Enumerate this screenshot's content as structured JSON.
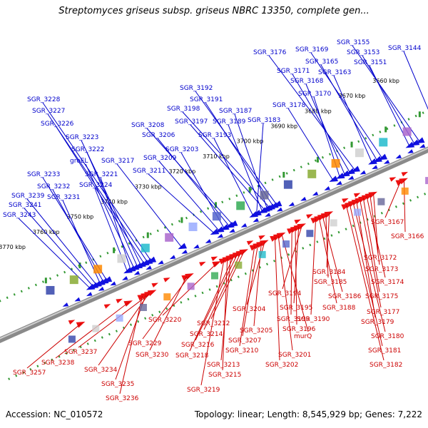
{
  "title": "Streptomyces griseus subsp. griseus NBRC 13350, complete gen...",
  "footer": {
    "accession": "Accession: NC_010572",
    "stats": "Topology: linear; Length: 8,545,929 bp; Genes: 7,222"
  },
  "colors": {
    "forward": "#1010e0",
    "reverse": "#ee1111",
    "forward_label": "#0000cc",
    "reverse_label": "#cc0000",
    "tick_dots": "#339933",
    "backbone": "#8a8a8a"
  },
  "kbp_ticks": [
    {
      "kbp": 3660,
      "label": "3660 kbp"
    },
    {
      "kbp": 3670,
      "label": "3670 kbp"
    },
    {
      "kbp": 3680,
      "label": "3680 kbp"
    },
    {
      "kbp": 3690,
      "label": "3690 kbp"
    },
    {
      "kbp": 3700,
      "label": "3700 kbp"
    },
    {
      "kbp": 3710,
      "label": "3710 kbp"
    },
    {
      "kbp": 3720,
      "label": "3720 kbp"
    },
    {
      "kbp": 3730,
      "label": "3730 kbp"
    },
    {
      "kbp": 3740,
      "label": "3740 kbp"
    },
    {
      "kbp": 3750,
      "label": "3750 kbp"
    },
    {
      "kbp": 3760,
      "label": "3760 kbp"
    },
    {
      "kbp": 3770,
      "label": "3770 kbp"
    }
  ],
  "forward_genes": [
    {
      "label": "SGR_3144",
      "kbp": 3657.5
    },
    {
      "label": "SGR_3155",
      "kbp": 3663.0
    },
    {
      "label": "SGR_3153",
      "kbp": 3664.5
    },
    {
      "label": "SGR_3151",
      "kbp": 3666.0
    },
    {
      "label": "SGR_3169",
      "kbp": 3674.0
    },
    {
      "label": "SGR_3165",
      "kbp": 3675.5
    },
    {
      "label": "SGR_3163",
      "kbp": 3677.0
    },
    {
      "label": "SGR_3176",
      "kbp": 3682.0
    },
    {
      "label": "SGR_3171",
      "kbp": 3683.5
    },
    {
      "label": "SGR_3168",
      "kbp": 3685.0
    },
    {
      "label": "SGR_3170",
      "kbp": 3686.5
    },
    {
      "label": "SGR_3178",
      "kbp": 3688.5
    },
    {
      "label": "SGR_3192",
      "kbp": 3705.0
    },
    {
      "label": "SGR_3191",
      "kbp": 3706.0
    },
    {
      "label": "SGR_3198",
      "kbp": 3707.0
    },
    {
      "label": "SGR_3187",
      "kbp": 3707.8
    },
    {
      "label": "SGR_3197",
      "kbp": 3708.5
    },
    {
      "label": "SGR_3189",
      "kbp": 3709.3
    },
    {
      "label": "SGR_3183",
      "kbp": 3711.0
    },
    {
      "label": "SGR_3193",
      "kbp": 3712.0
    },
    {
      "label": "SGR_3208",
      "kbp": 3718.0
    },
    {
      "label": "SGR_3206",
      "kbp": 3719.0
    },
    {
      "label": "SGR_3203",
      "kbp": 3720.5
    },
    {
      "label": "SGR_3209",
      "kbp": 3722.0
    },
    {
      "label": "SGR_3211",
      "kbp": 3723.5
    },
    {
      "label": "SGR_3217",
      "kbp": 3733.0
    },
    {
      "label": "SGR_3228",
      "kbp": 3742.0
    },
    {
      "label": "SGR_3227",
      "kbp": 3743.0
    },
    {
      "label": "SGR_3226",
      "kbp": 3744.0
    },
    {
      "label": "SGR_3223",
      "kbp": 3745.0
    },
    {
      "label": "SGR_3222",
      "kbp": 3746.0
    },
    {
      "label": "groEL",
      "kbp": 3747.0
    },
    {
      "label": "SGR_3221",
      "kbp": 3748.0
    },
    {
      "label": "SGR_3224",
      "kbp": 3749.0
    },
    {
      "label": "SGR_3233",
      "kbp": 3755.0
    },
    {
      "label": "SGR_3232",
      "kbp": 3756.0
    },
    {
      "label": "SGR_3231",
      "kbp": 3757.0
    },
    {
      "label": "SGR_3239",
      "kbp": 3758.0
    },
    {
      "label": "SGR_3241",
      "kbp": 3759.0
    },
    {
      "label": "SGR_3243",
      "kbp": 3760.0
    }
  ],
  "reverse_genes": [
    {
      "label": "SGR_3167",
      "kbp": 3672.0
    },
    {
      "label": "SGR_3166",
      "kbp": 3671.0
    },
    {
      "label": "SGR_3172",
      "kbp": 3680.0
    },
    {
      "label": "SGR_3173",
      "kbp": 3681.0
    },
    {
      "label": "SGR_3174",
      "kbp": 3682.0
    },
    {
      "label": "SGR_3175",
      "kbp": 3683.0
    },
    {
      "label": "SGR_3177",
      "kbp": 3684.0
    },
    {
      "label": "SGR_3179",
      "kbp": 3685.0
    },
    {
      "label": "SGR_3180",
      "kbp": 3686.0
    },
    {
      "label": "SGR_3181",
      "kbp": 3687.0
    },
    {
      "label": "SGR_3182",
      "kbp": 3688.0
    },
    {
      "label": "SGR_3184",
      "kbp": 3693.0
    },
    {
      "label": "SGR_3185",
      "kbp": 3694.0
    },
    {
      "label": "SGR_3186",
      "kbp": 3695.0
    },
    {
      "label": "SGR_3188",
      "kbp": 3696.0
    },
    {
      "label": "SGR_3190",
      "kbp": 3697.0
    },
    {
      "label": "SGR_3194",
      "kbp": 3701.0
    },
    {
      "label": "SGR_3195",
      "kbp": 3702.0
    },
    {
      "label": "SGR_3196",
      "kbp": 3703.0
    },
    {
      "label": "SGR_3199",
      "kbp": 3704.0
    },
    {
      "label": "SGR_3204",
      "kbp": 3712.0
    },
    {
      "label": "SGR_3205",
      "kbp": 3713.0
    },
    {
      "label": "murQ",
      "kbp": 3707.0
    },
    {
      "label": "SGR_3201",
      "kbp": 3708.0
    },
    {
      "label": "SGR_3202",
      "kbp": 3709.0
    },
    {
      "label": "SGR_3207",
      "kbp": 3714.0
    },
    {
      "label": "SGR_3210",
      "kbp": 3715.0
    },
    {
      "label": "SGR_3212",
      "kbp": 3718.0
    },
    {
      "label": "SGR_3214",
      "kbp": 3719.0
    },
    {
      "label": "SGR_3216",
      "kbp": 3720.0
    },
    {
      "label": "SGR_3218",
      "kbp": 3721.0
    },
    {
      "label": "SGR_3213",
      "kbp": 3722.0
    },
    {
      "label": "SGR_3215",
      "kbp": 3723.0
    },
    {
      "label": "SGR_3219",
      "kbp": 3724.0
    },
    {
      "label": "SGR_3220",
      "kbp": 3726.0
    },
    {
      "label": "SGR_3229",
      "kbp": 3734.0
    },
    {
      "label": "SGR_3230",
      "kbp": 3735.0
    },
    {
      "label": "SGR_3237",
      "kbp": 3745.0
    },
    {
      "label": "SGR_3234",
      "kbp": 3746.0
    },
    {
      "label": "SGR_3235",
      "kbp": 3747.0
    },
    {
      "label": "SGR_3236",
      "kbp": 3748.0
    },
    {
      "label": "SGR_3238",
      "kbp": 3752.0
    },
    {
      "label": "SGR_3257",
      "kbp": 3766.0
    }
  ]
}
